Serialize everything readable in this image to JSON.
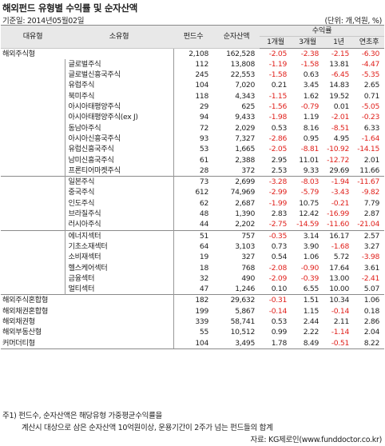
{
  "title": "해외펀드 유형별 수익률 및 순자산액",
  "date": "기준일: 2014년05월02일",
  "unit": "(단위: 개,억원, %)",
  "headers": {
    "major": "대유형",
    "minor": "소유형",
    "count": "펀드수",
    "assets": "순자산액",
    "returns": "수익률",
    "m1": "1개월",
    "m3": "3개월",
    "y1": "1년",
    "ytd": "연초후"
  },
  "rows": [
    {
      "major": "해외주식형",
      "minor": "",
      "count": "2,108",
      "assets": "162,528",
      "m1": "-2.05",
      "m3": "-2.38",
      "y1": "-2.15",
      "ytd": "-6.30"
    },
    {
      "major": "",
      "minor": "글로벌주식",
      "count": "112",
      "assets": "13,808",
      "m1": "-1.19",
      "m3": "-1.58",
      "y1": "13.81",
      "ytd": "-4.47"
    },
    {
      "major": "",
      "minor": "글로벌신흥국주식",
      "count": "245",
      "assets": "22,553",
      "m1": "-1.58",
      "m3": "0.63",
      "y1": "-6.45",
      "ytd": "-5.35"
    },
    {
      "major": "",
      "minor": "유럽주식",
      "count": "104",
      "assets": "7,020",
      "m1": "0.21",
      "m3": "3.45",
      "y1": "14.83",
      "ytd": "2.65"
    },
    {
      "major": "",
      "minor": "북미주식",
      "count": "118",
      "assets": "4,343",
      "m1": "-1.15",
      "m3": "1.62",
      "y1": "19.52",
      "ytd": "0.71"
    },
    {
      "major": "",
      "minor": "아시아태평양주식",
      "count": "29",
      "assets": "625",
      "m1": "-1.56",
      "m3": "-0.79",
      "y1": "0.01",
      "ytd": "-5.05"
    },
    {
      "major": "",
      "minor": "아시아태평양주식(ex J)",
      "count": "94",
      "assets": "9,433",
      "m1": "-1.98",
      "m3": "1.19",
      "y1": "-2.01",
      "ytd": "-0.23"
    },
    {
      "major": "",
      "minor": "동남아주식",
      "count": "72",
      "assets": "2,029",
      "m1": "0.53",
      "m3": "8.16",
      "y1": "-8.51",
      "ytd": "6.33"
    },
    {
      "major": "",
      "minor": "아시아신흥국주식",
      "count": "93",
      "assets": "7,327",
      "m1": "-2.86",
      "m3": "0.95",
      "y1": "4.95",
      "ytd": "-1.64"
    },
    {
      "major": "",
      "minor": "유럽신흥국주식",
      "count": "53",
      "assets": "1,665",
      "m1": "-2.05",
      "m3": "-8.81",
      "y1": "-10.92",
      "ytd": "-14.15"
    },
    {
      "major": "",
      "minor": "남미신흥국주식",
      "count": "61",
      "assets": "2,388",
      "m1": "2.95",
      "m3": "11.01",
      "y1": "-12.72",
      "ytd": "2.01"
    },
    {
      "major": "",
      "minor": "프론티어마켓주식",
      "count": "28",
      "assets": "372",
      "m1": "2.53",
      "m3": "9.33",
      "y1": "29.69",
      "ytd": "11.66"
    },
    {
      "major": "",
      "minor": "일본주식",
      "count": "73",
      "assets": "2,699",
      "m1": "-3.28",
      "m3": "-8.03",
      "y1": "-1.94",
      "ytd": "-11.67",
      "sep": true
    },
    {
      "major": "",
      "minor": "중국주식",
      "count": "612",
      "assets": "74,969",
      "m1": "-2.99",
      "m3": "-5.79",
      "y1": "-3.43",
      "ytd": "-9.82"
    },
    {
      "major": "",
      "minor": "인도주식",
      "count": "62",
      "assets": "2,687",
      "m1": "-1.99",
      "m3": "10.75",
      "y1": "-0.21",
      "ytd": "7.79"
    },
    {
      "major": "",
      "minor": "브라질주식",
      "count": "48",
      "assets": "1,390",
      "m1": "2.83",
      "m3": "12.42",
      "y1": "-16.99",
      "ytd": "2.87"
    },
    {
      "major": "",
      "minor": "러시아주식",
      "count": "44",
      "assets": "2,202",
      "m1": "-2.75",
      "m3": "-14.59",
      "y1": "-11.60",
      "ytd": "-21.04"
    },
    {
      "major": "",
      "minor": "에너지섹터",
      "count": "51",
      "assets": "757",
      "m1": "-0.35",
      "m3": "3.14",
      "y1": "16.17",
      "ytd": "2.57",
      "sep": true
    },
    {
      "major": "",
      "minor": "기초소재섹터",
      "count": "64",
      "assets": "3,103",
      "m1": "0.73",
      "m3": "3.90",
      "y1": "-1.68",
      "ytd": "3.27"
    },
    {
      "major": "",
      "minor": "소비재섹터",
      "count": "19",
      "assets": "327",
      "m1": "0.54",
      "m3": "1.06",
      "y1": "5.72",
      "ytd": "-3.98"
    },
    {
      "major": "",
      "minor": "헬스케어섹터",
      "count": "18",
      "assets": "768",
      "m1": "-2.08",
      "m3": "-0.90",
      "y1": "17.64",
      "ytd": "3.61"
    },
    {
      "major": "",
      "minor": "금융섹터",
      "count": "32",
      "assets": "490",
      "m1": "-2.09",
      "m3": "-0.39",
      "y1": "13.00",
      "ytd": "-2.41"
    },
    {
      "major": "",
      "minor": "멀티섹터",
      "count": "47",
      "assets": "1,246",
      "m1": "0.10",
      "m3": "6.55",
      "y1": "10.00",
      "ytd": "5.07"
    },
    {
      "major": "해외주식혼합형",
      "minor": "",
      "count": "182",
      "assets": "29,632",
      "m1": "-0.31",
      "m3": "1.51",
      "y1": "10.34",
      "ytd": "1.06",
      "sep": true
    },
    {
      "major": "해외채권혼합형",
      "minor": "",
      "count": "199",
      "assets": "5,867",
      "m1": "-0.14",
      "m3": "1.15",
      "y1": "-0.14",
      "ytd": "0.18"
    },
    {
      "major": "해외채권형",
      "minor": "",
      "count": "339",
      "assets": "58,741",
      "m1": "0.53",
      "m3": "2.44",
      "y1": "2.11",
      "ytd": "2.86"
    },
    {
      "major": "해외부동산형",
      "minor": "",
      "count": "55",
      "assets": "10,512",
      "m1": "0.99",
      "m3": "2.22",
      "y1": "-1.14",
      "ytd": "2.04"
    },
    {
      "major": "커머더티형",
      "minor": "",
      "count": "104",
      "assets": "3,495",
      "m1": "1.78",
      "m3": "8.49",
      "y1": "-0.51",
      "ytd": "8.22"
    }
  ],
  "footnote1": "주1) 펀드수, 순자산액은 해당유형 가중평균수익률을",
  "footnote2": "계산시 대상으로 삼은 순자산액 10억원이상, 운용기간이 2주가 넘는 펀드들의 합계",
  "source": "자료: KG제로인(www.funddoctor.co.kr)",
  "colors": {
    "negative": "#e0201b",
    "header_bg": "#e8e8e8"
  }
}
